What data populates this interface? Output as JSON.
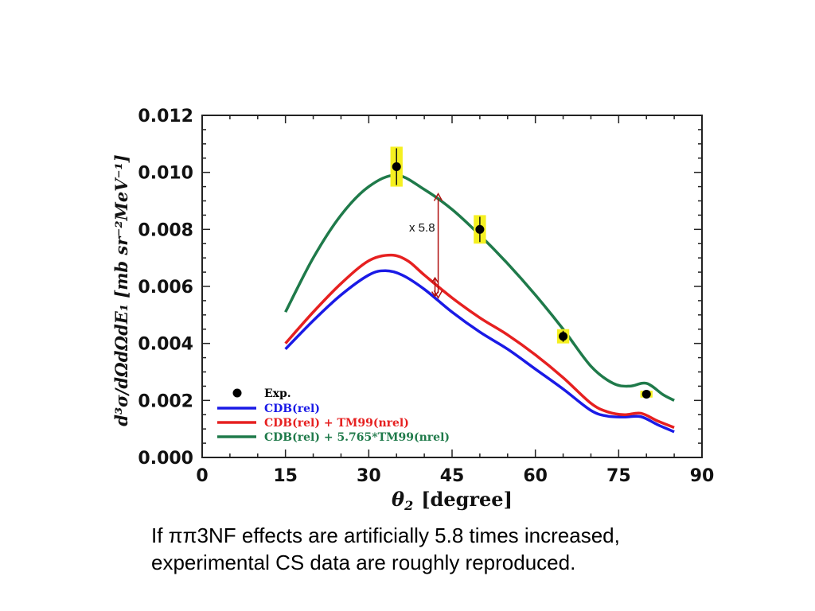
{
  "chart_data": {
    "type": "line",
    "xlabel_symbol": "θ",
    "xlabel_sub": "2",
    "xlabel_unit": "[degree]",
    "ylabel": "d³σ/dΩdΩdE₁ [mb sr⁻²MeV⁻¹]",
    "xlim": [
      0,
      90
    ],
    "ylim": [
      0,
      0.012
    ],
    "x_ticks": [
      0,
      15,
      30,
      45,
      60,
      75,
      90
    ],
    "y_ticks": [
      0.0,
      0.002,
      0.004,
      0.006,
      0.008,
      0.01,
      0.012
    ],
    "y_tick_labels": [
      "0.000",
      "0.002",
      "0.004",
      "0.006",
      "0.008",
      "0.010",
      "0.012"
    ],
    "series": [
      {
        "name": "CDB(rel)",
        "color": "#1a1ae6",
        "x": [
          15,
          20,
          25,
          30,
          33,
          36,
          40,
          45,
          50,
          55,
          60,
          65,
          70,
          73,
          76,
          79,
          82,
          85
        ],
        "values": [
          0.0038,
          0.0048,
          0.0057,
          0.0064,
          0.00655,
          0.0064,
          0.0059,
          0.0051,
          0.0044,
          0.0038,
          0.0031,
          0.0024,
          0.00165,
          0.00145,
          0.00142,
          0.00143,
          0.00115,
          0.0009
        ]
      },
      {
        "name": "CDB(rel) + TM99(nrel)",
        "color": "#e62020",
        "x": [
          15,
          20,
          25,
          30,
          34,
          37,
          40,
          45,
          50,
          55,
          60,
          65,
          70,
          73,
          76,
          79,
          82,
          85
        ],
        "values": [
          0.004,
          0.0051,
          0.0061,
          0.0069,
          0.0071,
          0.0069,
          0.0064,
          0.0056,
          0.0049,
          0.0043,
          0.0036,
          0.0028,
          0.0019,
          0.0016,
          0.0015,
          0.00155,
          0.00128,
          0.00105
        ]
      },
      {
        "name": "CDB(rel) + 5.765*TM99(nrel)",
        "color": "#1f7a4a",
        "x": [
          15,
          20,
          25,
          30,
          35,
          40,
          45,
          50,
          55,
          60,
          65,
          70,
          74,
          77,
          80,
          83,
          85
        ],
        "values": [
          0.0051,
          0.007,
          0.0085,
          0.0095,
          0.0099,
          0.0094,
          0.0087,
          0.0078,
          0.0068,
          0.0057,
          0.0045,
          0.0032,
          0.0026,
          0.0025,
          0.0026,
          0.0022,
          0.002
        ]
      }
    ],
    "experiment": {
      "name": "Exp.",
      "x": [
        35,
        50,
        65,
        80
      ],
      "values": [
        0.0102,
        0.008,
        0.00425,
        0.00222
      ],
      "box_half_height": [
        0.0007,
        0.0005,
        0.00025,
        0.00012
      ],
      "box_half_width": [
        1.1,
        1.1,
        1.1,
        1.1
      ]
    },
    "annotation": {
      "text": "x 5.8",
      "x": 42.5,
      "y_top": 0.00925,
      "y_bottom": 0.0056,
      "small_top": 0.0063,
      "small_bottom": 0.00565,
      "color": "#b01010"
    },
    "legend_placement": "bottom-left",
    "colors": {
      "blue": "#1a1ae6",
      "red": "#e62020",
      "green": "#1f7a4a",
      "exp_box": "#f5f020"
    }
  },
  "caption": {
    "line1": "If ππ3NF effects are artificially 5.8 times increased,",
    "line2": "experimental CS data are roughly reproduced."
  }
}
